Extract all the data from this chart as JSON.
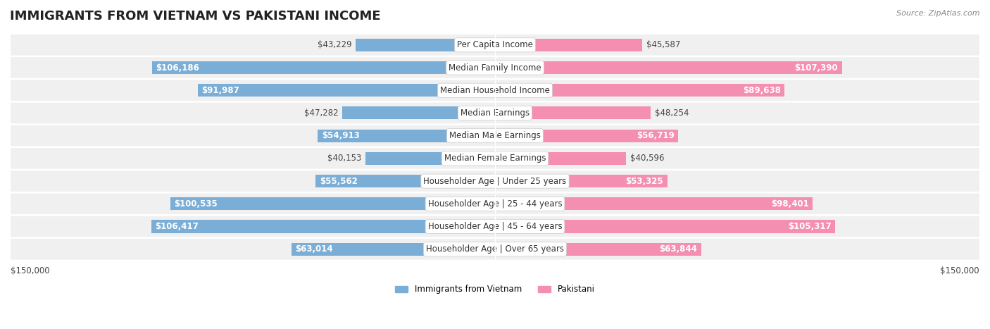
{
  "title": "IMMIGRANTS FROM VIETNAM VS PAKISTANI INCOME",
  "source": "Source: ZipAtlas.com",
  "categories": [
    "Per Capita Income",
    "Median Family Income",
    "Median Household Income",
    "Median Earnings",
    "Median Male Earnings",
    "Median Female Earnings",
    "Householder Age | Under 25 years",
    "Householder Age | 25 - 44 years",
    "Householder Age | 45 - 64 years",
    "Householder Age | Over 65 years"
  ],
  "vietnam_values": [
    43229,
    106186,
    91987,
    47282,
    54913,
    40153,
    55562,
    100535,
    106417,
    63014
  ],
  "pakistani_values": [
    45587,
    107390,
    89638,
    48254,
    56719,
    40596,
    53325,
    98401,
    105317,
    63844
  ],
  "vietnam_labels": [
    "$43,229",
    "$106,186",
    "$91,987",
    "$47,282",
    "$54,913",
    "$40,153",
    "$55,562",
    "$100,535",
    "$106,417",
    "$63,014"
  ],
  "pakistani_labels": [
    "$45,587",
    "$107,390",
    "$89,638",
    "$48,254",
    "$56,719",
    "$40,596",
    "$53,325",
    "$98,401",
    "$105,317",
    "$63,844"
  ],
  "vietnam_color": "#7aaed6",
  "pakistani_color": "#f48fb1",
  "vietnam_dark_color": "#5b9cc9",
  "pakistani_dark_color": "#ef6694",
  "max_value": 150000,
  "xlabel_left": "$150,000",
  "xlabel_right": "$150,000",
  "legend_vietnam": "Immigrants from Vietnam",
  "legend_pakistani": "Pakistani",
  "row_bg_color": "#f0f0f0",
  "title_fontsize": 13,
  "label_fontsize": 8.5,
  "category_fontsize": 8.5,
  "source_fontsize": 8
}
